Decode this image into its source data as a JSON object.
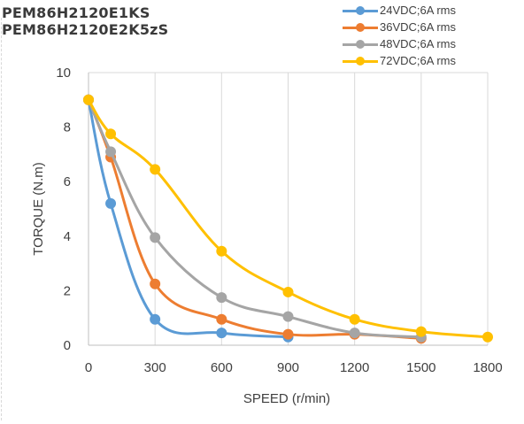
{
  "titles": [
    "PEM86H2120E1KS",
    "PEM86H2120E2K5zS"
  ],
  "chart_data": {
    "type": "line",
    "xlabel": "SPEED (r/min)",
    "ylabel": "TORQUE (N.m)",
    "xlim": [
      0,
      1800
    ],
    "ylim": [
      0,
      10
    ],
    "x_ticks": [
      0,
      300,
      600,
      900,
      1200,
      1500,
      1800
    ],
    "y_ticks": [
      0,
      2,
      4,
      6,
      8,
      10
    ],
    "grid": "vertical",
    "legend_position": "top-right",
    "series": [
      {
        "name": "24VDC;6A rms",
        "color": "#5b9bd5",
        "points": [
          [
            0,
            9.0
          ],
          [
            100,
            5.2
          ],
          [
            300,
            0.95
          ],
          [
            600,
            0.45
          ],
          [
            900,
            0.3
          ]
        ]
      },
      {
        "name": "36VDC;6A rms",
        "color": "#ed7d31",
        "points": [
          [
            0,
            9.0
          ],
          [
            100,
            6.9
          ],
          [
            300,
            2.25
          ],
          [
            600,
            0.95
          ],
          [
            900,
            0.4
          ],
          [
            1200,
            0.4
          ],
          [
            1500,
            0.25
          ]
        ]
      },
      {
        "name": "48VDC;6A rms",
        "color": "#a5a5a5",
        "points": [
          [
            0,
            9.0
          ],
          [
            100,
            7.1
          ],
          [
            300,
            3.95
          ],
          [
            600,
            1.75
          ],
          [
            900,
            1.05
          ],
          [
            1200,
            0.45
          ],
          [
            1500,
            0.3
          ]
        ]
      },
      {
        "name": "72VDC;6A rms",
        "color": "#ffc000",
        "points": [
          [
            0,
            9.0
          ],
          [
            100,
            7.75
          ],
          [
            300,
            6.45
          ],
          [
            600,
            3.45
          ],
          [
            900,
            1.95
          ],
          [
            1200,
            0.95
          ],
          [
            1500,
            0.5
          ],
          [
            1800,
            0.3
          ]
        ]
      }
    ]
  }
}
